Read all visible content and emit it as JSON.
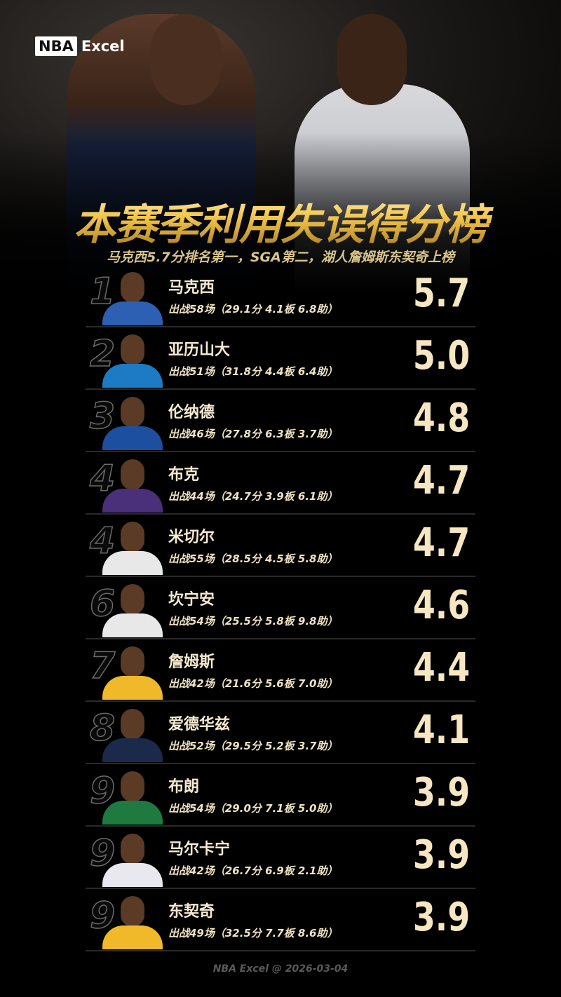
{
  "logo": {
    "nba": "NBA",
    "excel": "Excel"
  },
  "title": "本赛季利用失误得分榜",
  "subtitle": "马克西5.7分排名第一，SGA第二，湖人詹姆斯东契奇上榜",
  "rows": [
    {
      "rank": "1",
      "name": "马克西",
      "stats": "出战58场（29.1分 4.1板 6.8助）",
      "value": "5.7",
      "jersey": "#2d5fb3"
    },
    {
      "rank": "2",
      "name": "亚历山大",
      "stats": "出战51场（31.8分 4.4板 6.4助）",
      "value": "5.0",
      "jersey": "#1d7ac4"
    },
    {
      "rank": "3",
      "name": "伦纳德",
      "stats": "出战46场（27.8分 6.3板 3.7助）",
      "value": "4.8",
      "jersey": "#1d4fa0"
    },
    {
      "rank": "4",
      "name": "布克",
      "stats": "出战44场（24.7分 3.9板 6.1助）",
      "value": "4.7",
      "jersey": "#4a2f7a"
    },
    {
      "rank": "4",
      "name": "米切尔",
      "stats": "出战55场（28.5分 4.5板 5.8助）",
      "value": "4.7",
      "jersey": "#e8e8e8"
    },
    {
      "rank": "6",
      "name": "坎宁安",
      "stats": "出战54场（25.5分 5.8板 9.8助）",
      "value": "4.6",
      "jersey": "#e8e8e8"
    },
    {
      "rank": "7",
      "name": "詹姆斯",
      "stats": "出战42场（21.6分 5.6板 7.0助）",
      "value": "4.4",
      "jersey": "#f0b92a"
    },
    {
      "rank": "8",
      "name": "爱德华兹",
      "stats": "出战52场（29.5分 5.2板 3.7助）",
      "value": "4.1",
      "jersey": "#1b2a4a"
    },
    {
      "rank": "9",
      "name": "布朗",
      "stats": "出战54场（29.0分 7.1板 5.0助）",
      "value": "3.9",
      "jersey": "#1f7a3f"
    },
    {
      "rank": "9",
      "name": "马尔卡宁",
      "stats": "出战42场（26.7分 6.9板 2.1助）",
      "value": "3.9",
      "jersey": "#e8e8ee"
    },
    {
      "rank": "9",
      "name": "东契奇",
      "stats": "出战49场（32.5分 7.7板 8.6助）",
      "value": "3.9",
      "jersey": "#f0b92a"
    }
  ],
  "footer": "NBA Excel @ 2026-03-04"
}
